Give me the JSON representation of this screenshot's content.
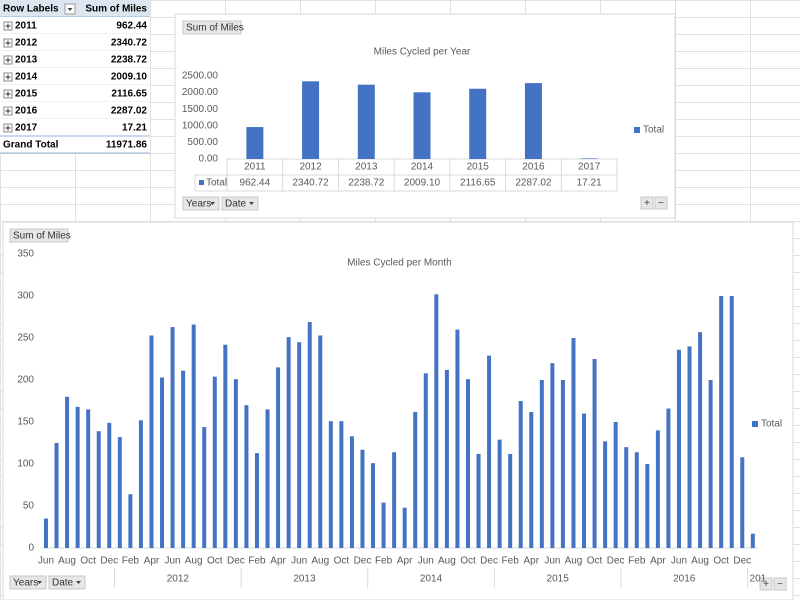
{
  "pivot_table": {
    "headers": [
      "Row Labels",
      "Sum of Miles"
    ],
    "rows": [
      [
        "2011",
        "962.44"
      ],
      [
        "2012",
        "2340.72"
      ],
      [
        "2013",
        "2238.72"
      ],
      [
        "2014",
        "2009.10"
      ],
      [
        "2015",
        "2116.65"
      ],
      [
        "2016",
        "2287.02"
      ],
      [
        "2017",
        "17.21"
      ]
    ],
    "total": [
      "Grand Total",
      "11971.86"
    ]
  },
  "chart_data": [
    {
      "type": "bar",
      "title": "Miles Cycled per Year",
      "value_field_button": "Sum of Miles",
      "axis_field_buttons": [
        "Years",
        "Date"
      ],
      "categories": [
        "2011",
        "2012",
        "2013",
        "2014",
        "2015",
        "2016",
        "2017"
      ],
      "series": [
        {
          "name": "Total",
          "color": "#4472c4",
          "values": [
            962.44,
            2340.72,
            2238.72,
            2009.1,
            2116.65,
            2287.02,
            17.21
          ],
          "value_labels": [
            "962.44",
            "2340.72",
            "2238.72",
            "2009.10",
            "2116.65",
            "2287.02",
            "17.21"
          ]
        }
      ],
      "ylim": [
        0,
        2500
      ],
      "yticks": [
        {
          "value": 0,
          "label": "0.00"
        },
        {
          "value": 500,
          "label": "500.00"
        },
        {
          "value": 1000,
          "label": "1000.00"
        },
        {
          "value": 1500,
          "label": "1500.00"
        },
        {
          "value": 2000,
          "label": "2000.00"
        },
        {
          "value": 2500,
          "label": "2500.00"
        }
      ],
      "grid": false,
      "legend": "right",
      "data_table": true
    },
    {
      "type": "bar",
      "title": "Miles Cycled per Month",
      "value_field_button": "Sum of Miles",
      "axis_field_buttons": [
        "Years",
        "Date"
      ],
      "categories": [
        "Jun",
        null,
        "Aug",
        null,
        "Oct",
        null,
        "Dec",
        null,
        "Feb",
        null,
        "Apr",
        null,
        "Jun",
        null,
        "Aug",
        null,
        "Oct",
        null,
        "Dec",
        null,
        "Feb",
        null,
        "Apr",
        null,
        "Jun",
        null,
        "Aug",
        null,
        "Oct",
        null,
        "Dec",
        null,
        "Feb",
        null,
        "Apr",
        null,
        "Jun",
        null,
        "Aug",
        null,
        "Oct",
        null,
        "Dec",
        null,
        "Feb",
        null,
        "Apr",
        null,
        "Jun",
        null,
        "Aug",
        null,
        "Oct",
        null,
        "Dec",
        null,
        "Feb",
        null,
        "Apr",
        null,
        "Jun",
        null,
        "Aug",
        null,
        "Oct",
        null,
        "Dec",
        null
      ],
      "year_groups": [
        "2012",
        "2013",
        "2014",
        "2015",
        "2016",
        "201"
      ],
      "series": [
        {
          "name": "Total",
          "color": "#4472c4",
          "values": [
            35,
            125,
            180,
            168,
            165,
            139,
            149,
            132,
            64,
            152,
            253,
            203,
            263,
            211,
            266,
            144,
            204,
            242,
            201,
            170,
            113,
            165,
            215,
            251,
            245,
            269,
            253,
            151,
            151,
            133,
            117,
            101,
            54,
            114,
            48,
            162,
            208,
            302,
            212,
            260,
            201,
            112,
            229,
            129,
            112,
            175,
            162,
            200,
            220,
            200,
            250,
            160,
            225,
            127,
            150,
            120,
            114,
            100,
            140,
            166,
            236,
            240,
            257,
            200,
            300,
            300,
            108,
            17
          ]
        }
      ],
      "ylim": [
        0,
        350
      ],
      "yticks": [
        0,
        50,
        100,
        150,
        200,
        250,
        300,
        350
      ],
      "grid": false,
      "legend": "right"
    }
  ]
}
